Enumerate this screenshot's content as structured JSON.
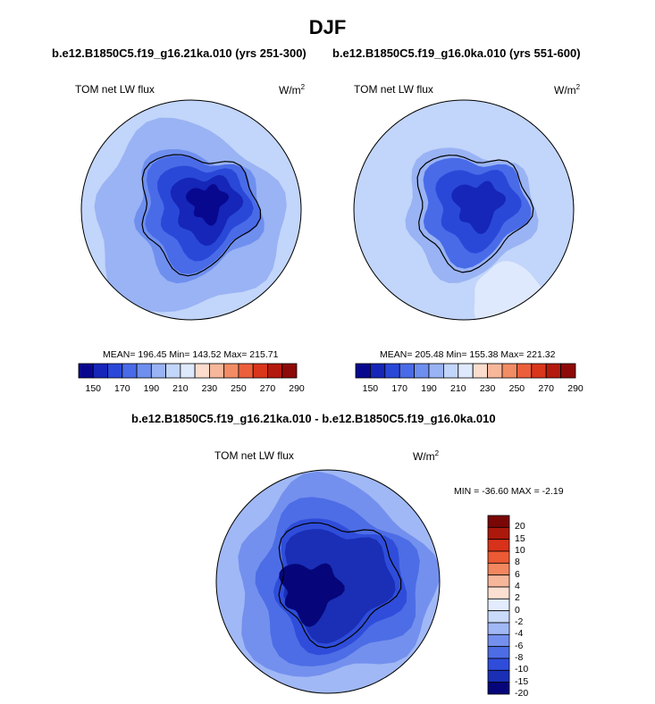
{
  "figure": {
    "title": "DJF",
    "diff_title": "b.e12.B1850C5.f19_g16.21ka.010 - b.e12.B1850C5.f19_g16.0ka.010"
  },
  "panels": [
    {
      "run_label": "b.e12.B1850C5.f19_g16.21ka.010 (yrs 251-300)",
      "variable": "TOM net LW flux",
      "units_base": "W/m",
      "units_exp": "2",
      "stats": "MEAN= 196.45  Min= 143.52  Max= 215.71"
    },
    {
      "run_label": "b.e12.B1850C5.f19_g16.0ka.010 (yrs 551-600)",
      "variable": "TOM net LW flux",
      "units_base": "W/m",
      "units_exp": "2",
      "stats": "MEAN= 205.48  Min= 155.38  Max= 221.32"
    },
    {
      "variable": "TOM net LW flux",
      "units_base": "W/m",
      "units_exp": "2",
      "stats": "MIN = -36.60 MAX =  -2.19"
    }
  ],
  "colors": {
    "absolute_scale": [
      "#08088f",
      "#1526b8",
      "#2a48d8",
      "#4a6be8",
      "#6f8fef",
      "#99b3f4",
      "#c2d5fa",
      "#dfe9fd",
      "#fbdccd",
      "#f7b79b",
      "#f28c64",
      "#ec5f3b",
      "#d9361c",
      "#b41a0e",
      "#8e0a08"
    ],
    "difference_scale": [
      "#06067a",
      "#1a2fb6",
      "#2f4dda",
      "#4d6de6",
      "#7490ee",
      "#a0b8f5",
      "#c9dafb",
      "#e3ecfe",
      "#fbe0d2",
      "#f7b69a",
      "#f2875f",
      "#ec5a34",
      "#d8321a",
      "#ac180c",
      "#7a0606"
    ],
    "border": "#000000"
  },
  "chart_data": [
    {
      "type": "heatmap",
      "projection": "south polar stereographic",
      "title": "b.e12.B1850C5.f19_g16.21ka.010 (yrs 251-300)",
      "variable": "TOM net LW flux",
      "units": "W/m2",
      "mean": 196.45,
      "min": 143.52,
      "max": 215.71,
      "colorbar_levels": [
        145,
        150,
        160,
        170,
        180,
        190,
        200,
        210,
        220,
        230,
        240,
        250,
        260,
        270,
        280,
        290
      ],
      "colorbar_tick_labels": [
        "150",
        "170",
        "190",
        "210",
        "230",
        "250",
        "270",
        "290"
      ]
    },
    {
      "type": "heatmap",
      "projection": "south polar stereographic",
      "title": "b.e12.B1850C5.f19_g16.0ka.010 (yrs 551-600)",
      "variable": "TOM net LW flux",
      "units": "W/m2",
      "mean": 205.48,
      "min": 155.38,
      "max": 221.32,
      "colorbar_levels": [
        145,
        150,
        160,
        170,
        180,
        190,
        200,
        210,
        220,
        230,
        240,
        250,
        260,
        270,
        280,
        290
      ],
      "colorbar_tick_labels": [
        "150",
        "170",
        "190",
        "210",
        "230",
        "250",
        "270",
        "290"
      ]
    },
    {
      "type": "heatmap",
      "projection": "south polar stereographic",
      "title": "b.e12.B1850C5.f19_g16.21ka.010 - b.e12.B1850C5.f19_g16.0ka.010",
      "variable": "TOM net LW flux",
      "units": "W/m2",
      "min": -36.6,
      "max": -2.19,
      "colorbar_levels": [
        -20,
        -15,
        -10,
        -8,
        -6,
        -4,
        -2,
        0,
        2,
        4,
        6,
        8,
        10,
        15,
        20
      ],
      "colorbar_tick_labels": [
        "20",
        "15",
        "10",
        "8",
        "6",
        "4",
        "2",
        "0",
        "-2",
        "-4",
        "-6",
        "-8",
        "-10",
        "-15",
        "-20"
      ]
    }
  ]
}
